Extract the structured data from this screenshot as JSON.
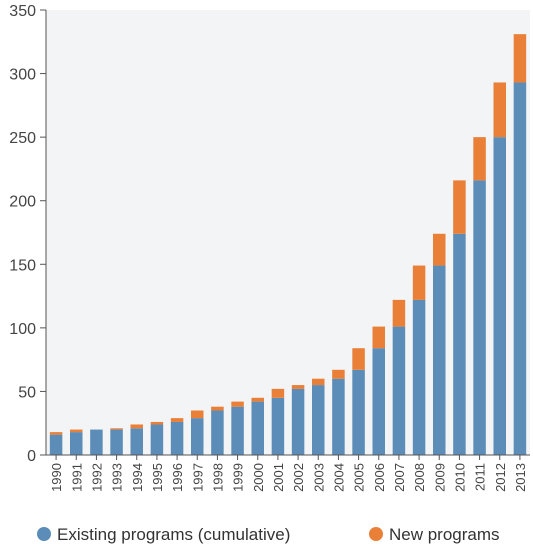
{
  "chart_data": {
    "type": "bar",
    "stacked": true,
    "categories": [
      "1990",
      "1991",
      "1992",
      "1993",
      "1994",
      "1995",
      "1996",
      "1997",
      "1998",
      "1999",
      "2000",
      "2001",
      "2002",
      "2003",
      "2004",
      "2005",
      "2006",
      "2007",
      "2008",
      "2009",
      "2010",
      "2011",
      "2012",
      "2013"
    ],
    "series": [
      {
        "name": "Existing programs (cumulative)",
        "color": "#5b8db8",
        "values": [
          16,
          18,
          20,
          20,
          21,
          24,
          26,
          29,
          35,
          38,
          42,
          45,
          52,
          55,
          60,
          67,
          84,
          101,
          122,
          149,
          174,
          216,
          250,
          293
        ]
      },
      {
        "name": "New programs",
        "color": "#ea8038",
        "values": [
          2,
          2,
          0,
          1,
          3,
          2,
          3,
          6,
          3,
          4,
          3,
          7,
          3,
          5,
          7,
          17,
          17,
          21,
          27,
          25,
          42,
          34,
          43,
          38
        ]
      }
    ],
    "ylim": [
      0,
      350
    ],
    "yticks": [
      0,
      50,
      100,
      150,
      200,
      250,
      300,
      350
    ],
    "grid": false,
    "legend_position": "bottom"
  }
}
